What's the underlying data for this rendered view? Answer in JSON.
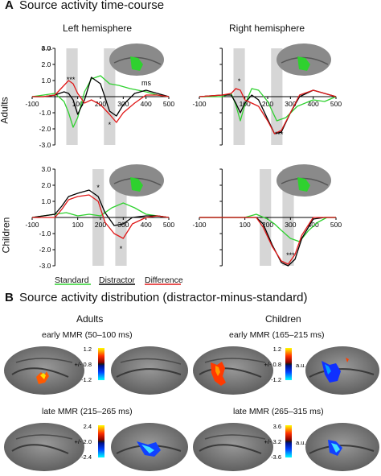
{
  "panel_a": {
    "letter": "A",
    "title": "Source activity time-course",
    "col_left": "Left hemisphere",
    "col_right": "Right hemisphere",
    "row_adults": "Adults",
    "row_children": "Children",
    "unit_label": "a.u.",
    "ms_label": "ms",
    "legend": [
      {
        "name": "Standard",
        "color": "#2fd12f"
      },
      {
        "name": "Distractor",
        "color": "#000000"
      },
      {
        "name": "Difference",
        "color": "#e01818"
      }
    ]
  },
  "panel_b": {
    "letter": "B",
    "title": "Source activity distribution (distractor-minus-standard)",
    "col_adults": "Adults",
    "col_children": "Children",
    "adults_early": {
      "label": "early MMR (50–100 ms)",
      "max": "1.2",
      "mid": "+/- 0.8",
      "min": "-1.2"
    },
    "adults_late": {
      "label": "late MMR (215–265 ms)",
      "max": "2.4",
      "mid": "+/- 2.0",
      "min": "-2.4"
    },
    "children_early": {
      "label": "early MMR (165–215 ms)",
      "max": "1.2",
      "mid": "+/- 0.8",
      "min": "-1.2",
      "unit": "a.u."
    },
    "children_late": {
      "label": "late MMR (265–315 ms)",
      "max": "3.6",
      "mid": "+/- 3.2",
      "min": "-3.6",
      "unit": "a.u."
    }
  },
  "chart_data": [
    {
      "type": "line",
      "panel": "adults-left",
      "xlim": [
        -100,
        500
      ],
      "ylim": [
        -3.0,
        3.0
      ],
      "xticks": [
        "-100",
        "100",
        "200",
        "300",
        "400",
        "500"
      ],
      "yticks": [
        "3.0",
        "2.0",
        "1.0",
        "-1.0",
        "-2.0",
        "-3.0"
      ],
      "shaded_windows": [
        [
          50,
          100
        ],
        [
          215,
          265
        ]
      ],
      "significance": [
        {
          "x": 70,
          "y": 0.9,
          "text": "***"
        },
        {
          "x": 240,
          "y": -1.9,
          "text": "*"
        }
      ],
      "series": [
        {
          "name": "Standard",
          "x": [
            -100,
            -50,
            0,
            40,
            60,
            80,
            100,
            130,
            160,
            200,
            240,
            280,
            330,
            400,
            450,
            500
          ],
          "y": [
            0,
            0.1,
            0.2,
            -0.3,
            -1.0,
            -1.9,
            -1.3,
            0.3,
            1.1,
            1.3,
            0.8,
            0.7,
            0.5,
            0.3,
            0.1,
            0
          ]
        },
        {
          "name": "Distractor",
          "x": [
            -100,
            -50,
            0,
            40,
            60,
            80,
            100,
            130,
            160,
            200,
            240,
            270,
            300,
            350,
            400,
            450,
            500
          ],
          "y": [
            0,
            0,
            0.1,
            0.3,
            0.2,
            -0.2,
            -1.1,
            -0.2,
            1.2,
            0.8,
            -0.9,
            -1.2,
            -0.5,
            0.2,
            0.4,
            0.2,
            0
          ]
        },
        {
          "name": "Difference",
          "x": [
            -100,
            -50,
            0,
            40,
            60,
            80,
            100,
            130,
            160,
            200,
            240,
            270,
            300,
            350,
            400,
            450,
            500
          ],
          "y": [
            0,
            0,
            0.1,
            0.7,
            1.0,
            0.8,
            0.2,
            -0.4,
            -0.2,
            -0.5,
            -1.1,
            -1.6,
            -1.0,
            -0.4,
            0.1,
            0.1,
            0
          ]
        }
      ]
    },
    {
      "type": "line",
      "panel": "adults-right",
      "xlim": [
        -100,
        500
      ],
      "ylim": [
        -3.0,
        3.0
      ],
      "xticks": [
        "-100",
        "100",
        "200",
        "300",
        "400",
        "500"
      ],
      "shaded_windows": [
        [
          50,
          100
        ],
        [
          215,
          265
        ]
      ],
      "significance": [
        {
          "x": 75,
          "y": 0.8,
          "text": "*"
        },
        {
          "x": 250,
          "y": -2.5,
          "text": "***"
        }
      ],
      "series": [
        {
          "name": "Standard",
          "x": [
            -100,
            0,
            40,
            60,
            80,
            100,
            130,
            160,
            200,
            240,
            280,
            330,
            400,
            450,
            500
          ],
          "y": [
            0,
            0,
            0.2,
            -0.5,
            -1.5,
            -0.5,
            0.5,
            0.4,
            -0.3,
            -1.5,
            -1.3,
            -0.6,
            -0.2,
            -0.3,
            0
          ]
        },
        {
          "name": "Distractor",
          "x": [
            -100,
            0,
            40,
            60,
            80,
            100,
            130,
            160,
            200,
            230,
            260,
            300,
            340,
            400,
            450,
            500
          ],
          "y": [
            0,
            0.1,
            0.1,
            -0.4,
            -1.0,
            -0.4,
            0.1,
            -0.2,
            -1.4,
            -2.3,
            -2.2,
            -1.0,
            0,
            0.4,
            0.2,
            0
          ]
        },
        {
          "name": "Difference",
          "x": [
            -100,
            0,
            40,
            60,
            80,
            100,
            130,
            160,
            200,
            230,
            260,
            300,
            340,
            400,
            450,
            500
          ],
          "y": [
            0,
            0.1,
            0.2,
            0.5,
            0.4,
            -0.2,
            -0.4,
            -0.6,
            -1.5,
            -2.3,
            -2.1,
            -1.0,
            0.1,
            0.4,
            0.2,
            0
          ]
        }
      ]
    },
    {
      "type": "line",
      "panel": "children-left",
      "xlim": [
        -100,
        500
      ],
      "ylim": [
        -3.0,
        3.0
      ],
      "xticks": [
        "-100",
        "100",
        "200",
        "300",
        "400",
        "500"
      ],
      "yticks": [
        "3.0",
        "2.0",
        "1.0",
        "-1.0",
        "-2.0",
        "-3.0"
      ],
      "shaded_windows": [
        [
          165,
          215
        ],
        [
          265,
          315
        ]
      ],
      "significance": [
        {
          "x": 190,
          "y": 1.7,
          "text": "*"
        },
        {
          "x": 290,
          "y": -2.1,
          "text": "*"
        }
      ],
      "series": [
        {
          "name": "Standard",
          "x": [
            -100,
            0,
            50,
            100,
            150,
            200,
            250,
            300,
            350,
            400,
            450,
            500
          ],
          "y": [
            0,
            0.2,
            0.3,
            0.1,
            0.2,
            0.1,
            0.6,
            0.9,
            0.6,
            0.2,
            0.1,
            0
          ]
        },
        {
          "name": "Distractor",
          "x": [
            -100,
            0,
            30,
            60,
            100,
            150,
            190,
            220,
            260,
            300,
            340,
            400,
            450,
            500
          ],
          "y": [
            0,
            0.2,
            0.7,
            1.3,
            1.5,
            1.7,
            1.3,
            0.3,
            -0.5,
            -0.4,
            0,
            0.1,
            0.1,
            0
          ]
        },
        {
          "name": "Difference",
          "x": [
            -100,
            0,
            30,
            60,
            100,
            150,
            190,
            220,
            260,
            300,
            340,
            400,
            450,
            500
          ],
          "y": [
            0,
            0,
            0.5,
            1.1,
            1.3,
            1.4,
            1.0,
            -0.3,
            -1.0,
            -1.3,
            -0.4,
            0,
            0.1,
            0
          ]
        }
      ]
    },
    {
      "type": "line",
      "panel": "children-right",
      "xlim": [
        -100,
        500
      ],
      "ylim": [
        -3.0,
        3.0
      ],
      "xticks": [
        "-100",
        "100",
        "200",
        "300",
        "400",
        "500"
      ],
      "shaded_windows": [
        [
          165,
          215
        ],
        [
          265,
          315
        ]
      ],
      "significance": [
        {
          "x": 300,
          "y": -2.5,
          "text": "***"
        }
      ],
      "series": [
        {
          "name": "Standard",
          "x": [
            -100,
            0,
            100,
            150,
            200,
            230,
            260,
            300,
            340,
            380,
            420,
            460,
            500
          ],
          "y": [
            0,
            0,
            0,
            0.2,
            -0.1,
            -0.4,
            -0.8,
            -1.3,
            -1.5,
            -0.8,
            -0.3,
            0,
            0
          ]
        },
        {
          "name": "Distractor",
          "x": [
            -100,
            0,
            100,
            150,
            180,
            220,
            260,
            290,
            320,
            350,
            400,
            450,
            500
          ],
          "y": [
            0,
            0,
            0,
            0,
            -0.4,
            -1.7,
            -2.8,
            -3.0,
            -2.6,
            -1.3,
            -0.1,
            0,
            0
          ]
        },
        {
          "name": "Difference",
          "x": [
            -100,
            0,
            100,
            150,
            180,
            220,
            260,
            290,
            320,
            350,
            400,
            450,
            500
          ],
          "y": [
            0,
            0,
            0,
            0,
            -0.6,
            -1.8,
            -2.7,
            -2.9,
            -2.3,
            -1.1,
            0,
            0,
            0
          ]
        }
      ]
    }
  ]
}
